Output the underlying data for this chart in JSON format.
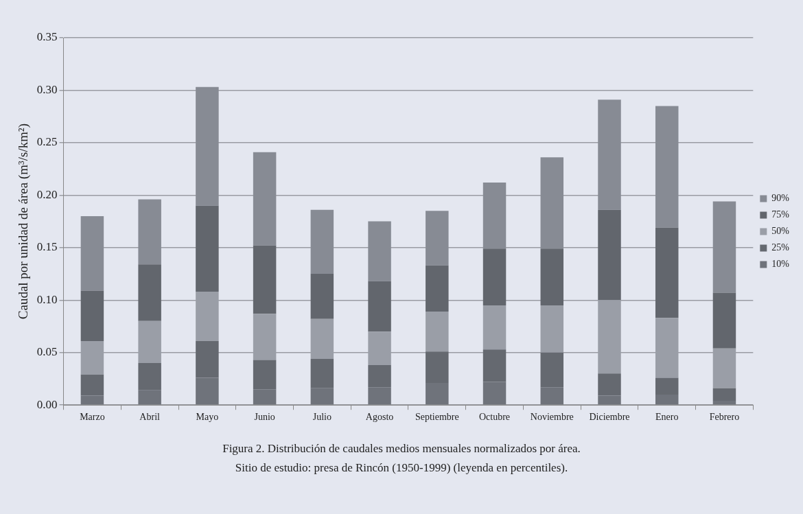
{
  "chart_data": {
    "type": "bar",
    "stacked": true,
    "ylabel": "Caudal por unidad de área (m³/s/km²)",
    "categories": [
      "Marzo",
      "Abril",
      "Mayo",
      "Junio",
      "Julio",
      "Agosto",
      "Septiembre",
      "Octubre",
      "Noviembre",
      "Diciembre",
      "Enero",
      "Febrero"
    ],
    "series": [
      {
        "name": "10%",
        "color": "#6f737b",
        "values": [
          0.009,
          0.014,
          0.026,
          0.015,
          0.016,
          0.017,
          0.021,
          0.022,
          0.017,
          0.009,
          0.01,
          0.004
        ]
      },
      {
        "name": "25%",
        "color": "#656970",
        "values": [
          0.02,
          0.026,
          0.035,
          0.028,
          0.028,
          0.021,
          0.03,
          0.031,
          0.033,
          0.021,
          0.016,
          0.012
        ]
      },
      {
        "name": "50%",
        "color": "#9a9ea7",
        "values": [
          0.032,
          0.04,
          0.047,
          0.044,
          0.038,
          0.032,
          0.038,
          0.042,
          0.045,
          0.07,
          0.057,
          0.038
        ]
      },
      {
        "name": "75%",
        "color": "#62666d",
        "values": [
          0.048,
          0.054,
          0.082,
          0.065,
          0.043,
          0.048,
          0.044,
          0.054,
          0.054,
          0.086,
          0.086,
          0.053
        ]
      },
      {
        "name": "90%",
        "color": "#878b94",
        "values": [
          0.071,
          0.062,
          0.113,
          0.089,
          0.061,
          0.057,
          0.052,
          0.063,
          0.087,
          0.105,
          0.116,
          0.087
        ]
      }
    ],
    "ylim": [
      0,
      0.35
    ],
    "yticks": [
      {
        "value": 0,
        "label": "0.00"
      },
      {
        "value": 0.05,
        "label": "0.05"
      },
      {
        "value": 0.1,
        "label": "0.10"
      },
      {
        "value": 0.15,
        "label": "0.15"
      },
      {
        "value": 0.2,
        "label": "0.20"
      },
      {
        "value": 0.25,
        "label": "0.25"
      },
      {
        "value": 0.3,
        "label": "0.30"
      },
      {
        "value": 0.35,
        "label": "0.35"
      }
    ],
    "grid": "y",
    "legend": "right",
    "annotations": [
      "Figura 2. Distribución de caudales medios mensuales normalizados por área.",
      "Sitio de estudio: presa de Rincón (1950-1999) (leyenda en percentiles)."
    ]
  }
}
